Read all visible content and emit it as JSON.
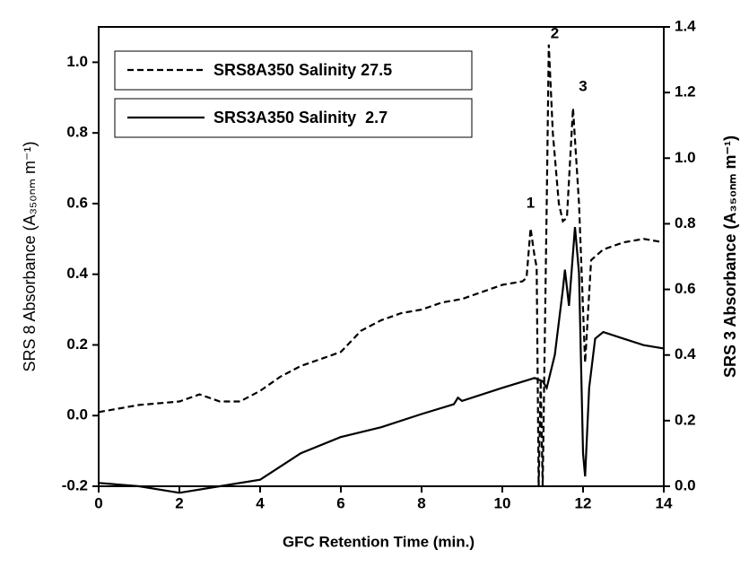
{
  "chart_data": {
    "type": "line",
    "x_label": "GFC Retention Time (min.)",
    "y_label": "SRS 8 Absorbance (A₃₅₀ₙₘ m⁻¹)",
    "y2_label": "SRS 3 Absorbance (A₃₅₀ₙₘ m⁻¹)",
    "xlim": [
      0,
      14
    ],
    "xticks": [
      0,
      2,
      4,
      6,
      8,
      10,
      12,
      14
    ],
    "ylim": [
      -0.2,
      1.1
    ],
    "yticks": [
      -0.2,
      {
        "value": 0,
        "label": "0.0"
      },
      0.2,
      0.4,
      0.6,
      0.8,
      {
        "value": 1,
        "label": "1.0"
      }
    ],
    "y2lim": [
      0,
      1.4
    ],
    "y2ticks": [
      {
        "value": 0,
        "label": "0.0"
      },
      0.2,
      0.4,
      0.6,
      0.8,
      {
        "value": 1,
        "label": "1.0"
      },
      1.2,
      1.4
    ],
    "series": [
      {
        "name": "SRS8A350 Salinity 27.5",
        "color": "#000000",
        "dash": true,
        "x": [
          0,
          1,
          2,
          2.5,
          3,
          3.5,
          4,
          4.5,
          5,
          5.5,
          6,
          6.5,
          7,
          7.5,
          8,
          8.5,
          9,
          9.5,
          10,
          10.5,
          10.6,
          10.7,
          10.8,
          10.85,
          10.9,
          10.95,
          11.0,
          11.1,
          11.15,
          11.25,
          11.4,
          11.5,
          11.6,
          11.75,
          11.9,
          12.0,
          12.05,
          12.2,
          12.5,
          13,
          13.5,
          14
        ],
        "values": [
          0.01,
          0.03,
          0.04,
          0.06,
          0.04,
          0.04,
          0.07,
          0.11,
          0.14,
          0.16,
          0.18,
          0.24,
          0.27,
          0.29,
          0.3,
          0.32,
          0.33,
          0.35,
          0.37,
          0.38,
          0.39,
          0.53,
          0.45,
          0.42,
          -0.2,
          0.1,
          -0.2,
          0.6,
          1.05,
          0.8,
          0.6,
          0.55,
          0.56,
          0.87,
          0.6,
          0.3,
          0.15,
          0.44,
          0.47,
          0.49,
          0.5,
          0.49
        ]
      },
      {
        "name": "SRS3A350 Salinity  2.7",
        "color": "#000000",
        "dash": false,
        "axis": "y2",
        "x": [
          0,
          1,
          2,
          3,
          4,
          4.5,
          5,
          6,
          7,
          8,
          8.8,
          8.9,
          9,
          10,
          10.8,
          11.0,
          11.1,
          11.3,
          11.5,
          11.55,
          11.65,
          11.8,
          11.9,
          12.0,
          12.05,
          12.15,
          12.3,
          12.5,
          13,
          13.5,
          14
        ],
        "values": [
          0.01,
          0.0,
          -0.02,
          0.0,
          0.02,
          0.06,
          0.1,
          0.15,
          0.18,
          0.22,
          0.25,
          0.27,
          0.26,
          0.3,
          0.33,
          0.32,
          0.3,
          0.4,
          0.6,
          0.66,
          0.55,
          0.79,
          0.65,
          0.1,
          0.03,
          0.3,
          0.45,
          0.47,
          0.45,
          0.43,
          0.42
        ]
      }
    ],
    "annotations": [
      {
        "text": "1",
        "x": 10.7,
        "y": 0.6
      },
      {
        "text": "2",
        "x": 11.3,
        "y": 1.08
      },
      {
        "text": "3",
        "x": 12.0,
        "y": 0.93
      }
    ]
  }
}
